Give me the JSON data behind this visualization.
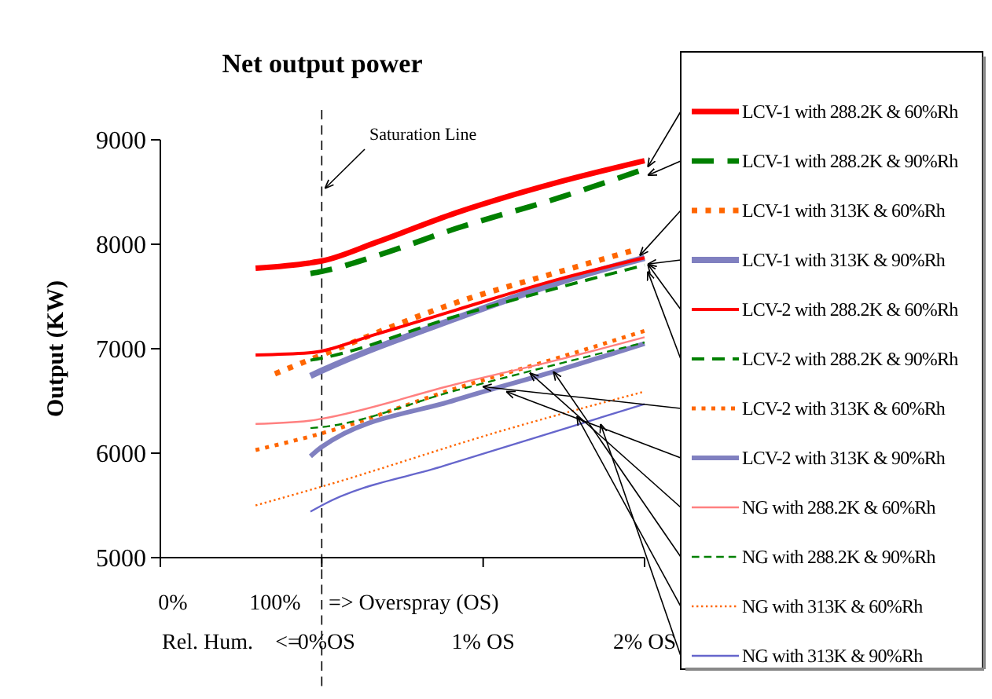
{
  "chart_data": {
    "type": "line",
    "title": "Net output power",
    "ylabel": "Output (KW)",
    "xlim": [
      -1,
      2
    ],
    "xticks": [
      {
        "value": -1,
        "label": null
      },
      {
        "value": 0,
        "label": "0%OS"
      },
      {
        "value": 1,
        "label": "1% OS"
      },
      {
        "value": 2,
        "label": "2% OS"
      }
    ],
    "ylim": [
      5000,
      9000
    ],
    "yticks": [
      5000,
      6000,
      7000,
      8000,
      9000
    ],
    "grid": false,
    "legend": "right",
    "annotations": [
      "0%",
      "100%",
      "=> Overspray (OS)",
      "Rel. Hum.",
      "<="
    ],
    "ref_lines": [
      {
        "axis": "x",
        "value": 0,
        "label": "Saturation Line",
        "color": "#000000",
        "line_style": "dashed"
      }
    ],
    "series": [
      {
        "name": "LCV-1 with 288.2K & 60%Rh",
        "color": "#ff0000",
        "line_style": "solid",
        "x": [
          -0.41,
          -0.08,
          0,
          0.34,
          0.83,
          1.48,
          2
        ],
        "values": [
          7770,
          7820,
          7840,
          8020,
          8300,
          8600,
          8800
        ]
      },
      {
        "name": "LCV-1 with 288.2K & 90%Rh",
        "color": "#008000",
        "line_style": "dashed",
        "x": [
          -0.07,
          0,
          0.34,
          0.83,
          1.48,
          2
        ],
        "values": [
          7720,
          7740,
          7890,
          8150,
          8450,
          8720
        ]
      },
      {
        "name": "LCV-1 with 313K & 60%Rh",
        "color": "#ff6600",
        "line_style": "dotted",
        "x": [
          -0.29,
          0,
          0.83,
          1.48,
          1.95
        ],
        "values": [
          6760,
          6940,
          7440,
          7740,
          7950
        ]
      },
      {
        "name": "LCV-1 with 313K & 90%Rh",
        "color": "#8080c0",
        "line_style": "solid",
        "x": [
          -0.07,
          0,
          0.83,
          1.48,
          2
        ],
        "values": [
          6740,
          6790,
          7290,
          7640,
          7870
        ]
      },
      {
        "name": "LCV-2 with 288.2K & 60%Rh",
        "color": "#ff0000",
        "line_style": "solid",
        "x": [
          -0.41,
          -0.08,
          0.34,
          0.83,
          1.48,
          2
        ],
        "values": [
          6940,
          6960,
          7140,
          7370,
          7670,
          7870
        ]
      },
      {
        "name": "LCV-2 with 288.2K & 90%Rh",
        "color": "#008000",
        "line_style": "dashed",
        "x": [
          -0.07,
          0,
          0.83,
          1.48,
          2
        ],
        "values": [
          6890,
          6910,
          7310,
          7590,
          7800
        ]
      },
      {
        "name": "LCV-2 with 313K & 60%Rh",
        "color": "#ff6600",
        "line_style": "dotted",
        "x": [
          -0.41,
          0,
          0.83,
          1.48,
          2
        ],
        "values": [
          6030,
          6190,
          6620,
          6920,
          7170
        ]
      },
      {
        "name": "LCV-2 with 313K & 90%Rh",
        "color": "#8080c0",
        "line_style": "solid",
        "x": [
          -0.07,
          0,
          0.83,
          1.48,
          2
        ],
        "values": [
          5970,
          6060,
          6510,
          6800,
          7050
        ]
      },
      {
        "name": "NG with 288.2K & 60%Rh",
        "color": "#ff8080",
        "line_style": "solid",
        "x": [
          -0.41,
          -0.08,
          0,
          0.83,
          1.48,
          2
        ],
        "values": [
          6280,
          6310,
          6330,
          6660,
          6900,
          7110
        ]
      },
      {
        "name": "NG with 288.2K & 90%Rh",
        "color": "#008000",
        "line_style": "dashed",
        "x": [
          -0.07,
          0,
          0.83,
          1.48,
          2
        ],
        "values": [
          6240,
          6250,
          6600,
          6860,
          7060
        ]
      },
      {
        "name": "NG with 313K & 60%Rh",
        "color": "#ff6600",
        "line_style": "dotted",
        "x": [
          -0.41,
          0,
          1.15,
          2
        ],
        "values": [
          5500,
          5680,
          6230,
          6590
        ]
      },
      {
        "name": "NG with 313K & 90%Rh",
        "color": "#6666cc",
        "line_style": "solid",
        "x": [
          -0.07,
          0,
          0.76,
          2
        ],
        "values": [
          5440,
          5500,
          5880,
          6470
        ]
      }
    ]
  }
}
